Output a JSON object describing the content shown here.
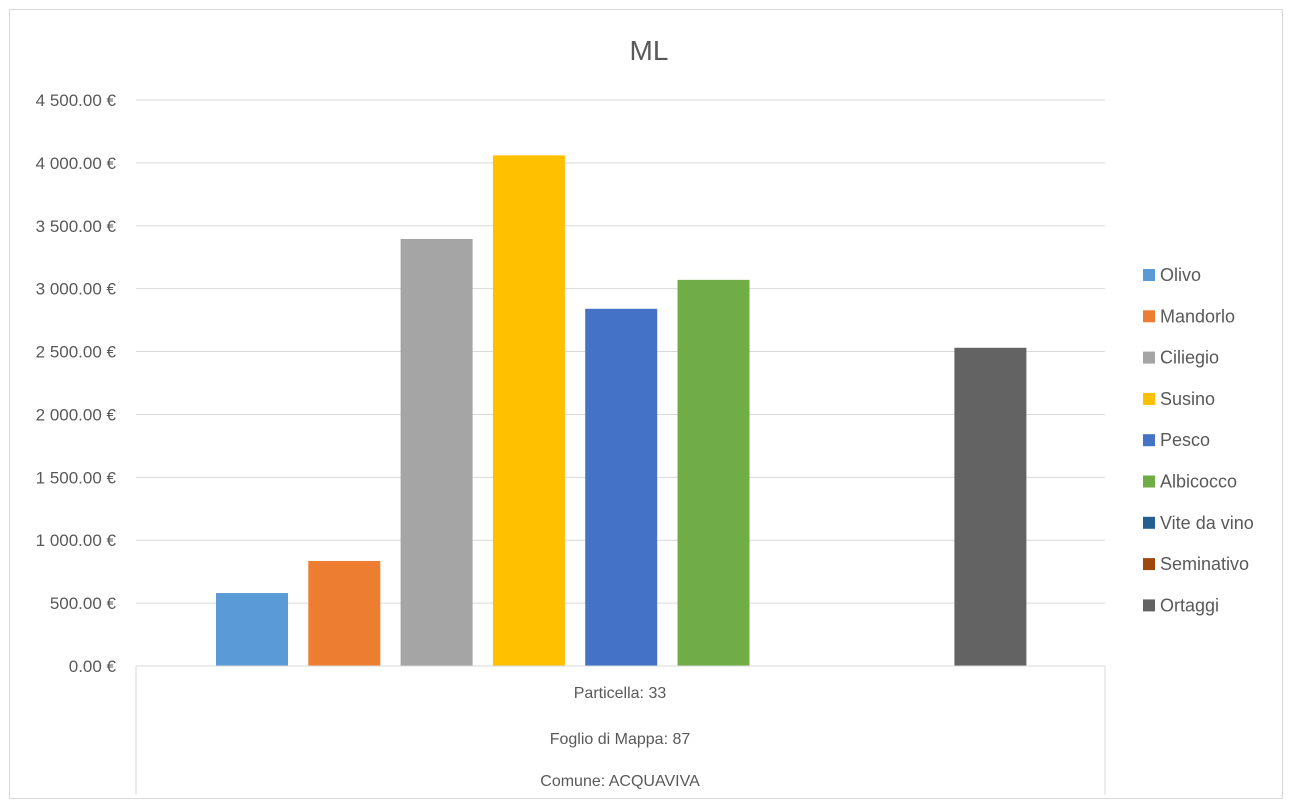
{
  "chart_data": {
    "type": "bar",
    "title": "ML",
    "xlabel": "",
    "ylabel": "",
    "ylim": [
      0,
      4500
    ],
    "yticks": [
      0,
      500,
      1000,
      1500,
      2000,
      2500,
      3000,
      3500,
      4000,
      4500
    ],
    "ytick_labels": [
      "0.00 €",
      "500.00 €",
      "1 000.00 €",
      "1 500.00 €",
      "2 000.00 €",
      "2 500.00 €",
      "3 000.00 €",
      "3 500.00 €",
      "4 000.00 €",
      "4 500.00 €"
    ],
    "category_levels": [
      "Particella: 33",
      "Foglio di Mappa: 87",
      "Comune: ACQUAVIVA"
    ],
    "grid": true,
    "legend_position": "right",
    "series": [
      {
        "name": "Olivo",
        "value": 580,
        "color": "#5b9bd5"
      },
      {
        "name": "Mandorlo",
        "value": 835,
        "color": "#ed7d31"
      },
      {
        "name": "Ciliegio",
        "value": 3395,
        "color": "#a5a5a5"
      },
      {
        "name": "Susino",
        "value": 4060,
        "color": "#ffc000"
      },
      {
        "name": "Pesco",
        "value": 2840,
        "color": "#4472c4"
      },
      {
        "name": "Albicocco",
        "value": 3070,
        "color": "#70ad47"
      },
      {
        "name": "Vite da vino",
        "value": 0,
        "color": "#255e91"
      },
      {
        "name": "Seminativo",
        "value": 0,
        "color": "#9e480e"
      },
      {
        "name": "Ortaggi",
        "value": 2530,
        "color": "#636363"
      }
    ]
  }
}
